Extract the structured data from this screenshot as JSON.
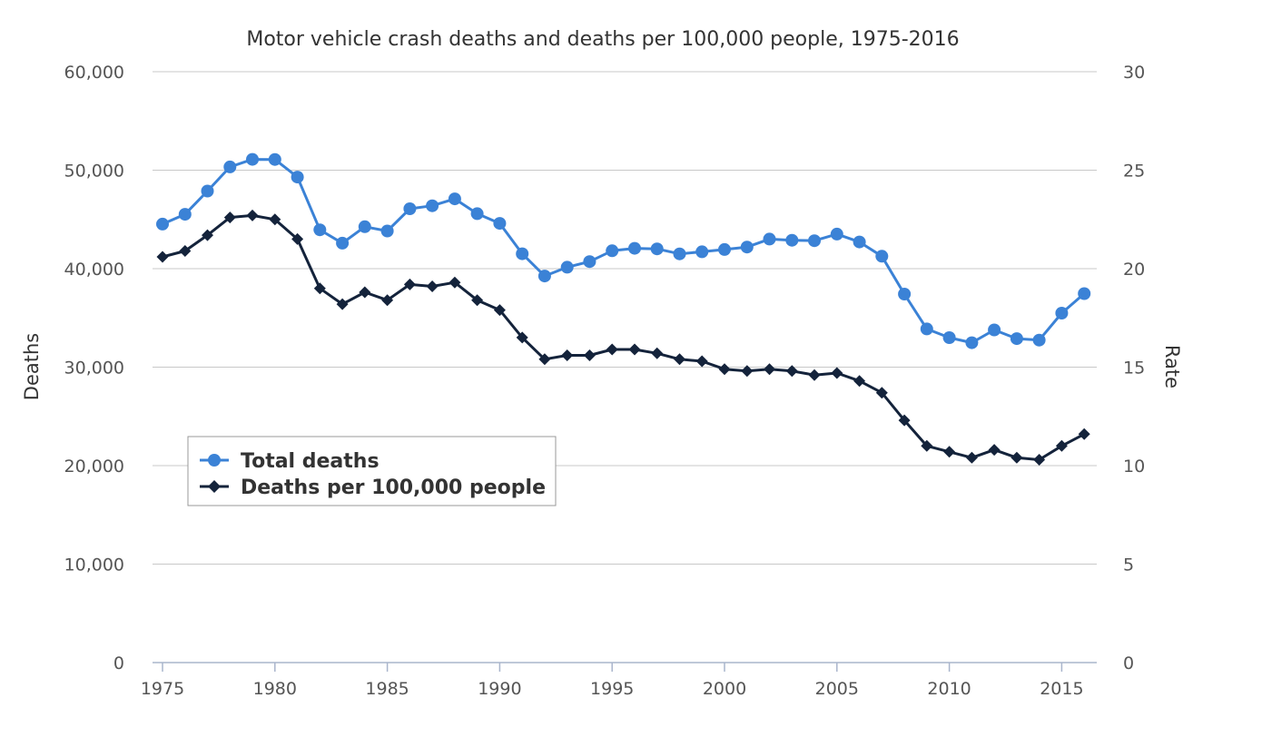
{
  "chart_data": {
    "type": "line",
    "title": "Motor vehicle crash deaths and deaths per 100,000 people, 1975-2016",
    "x": [
      1975,
      1976,
      1977,
      1978,
      1979,
      1980,
      1981,
      1982,
      1983,
      1984,
      1985,
      1986,
      1987,
      1988,
      1989,
      1990,
      1991,
      1992,
      1993,
      1994,
      1995,
      1996,
      1997,
      1998,
      1999,
      2000,
      2001,
      2002,
      2003,
      2004,
      2005,
      2006,
      2007,
      2008,
      2009,
      2010,
      2011,
      2012,
      2013,
      2014,
      2015,
      2016
    ],
    "xticks": [
      "1975",
      "1980",
      "1985",
      "1990",
      "1995",
      "2000",
      "2005",
      "2010",
      "2015"
    ],
    "xlim": [
      1975,
      2016
    ],
    "y_left": {
      "label": "Deaths",
      "lim": [
        0,
        60000
      ],
      "ticks": [
        "0",
        "10,000",
        "20,000",
        "30,000",
        "40,000",
        "50,000",
        "60,000"
      ]
    },
    "y_right": {
      "label": "Rate",
      "lim": [
        0,
        30
      ],
      "ticks": [
        "0",
        "5",
        "10",
        "15",
        "20",
        "25",
        "30"
      ]
    },
    "grid": true,
    "legend": {
      "placement": "bottom-left"
    },
    "series": [
      {
        "name": "Total deaths",
        "axis": "left",
        "marker": "circle",
        "color": "#3b82d6",
        "values": [
          44525,
          45523,
          47878,
          50331,
          51093,
          51091,
          49301,
          43945,
          42589,
          44257,
          43825,
          46087,
          46390,
          47087,
          45582,
          44599,
          41508,
          39250,
          40150,
          40716,
          41817,
          42065,
          42013,
          41501,
          41717,
          41945,
          42196,
          43005,
          42884,
          42836,
          43510,
          42708,
          41259,
          37423,
          33883,
          32999,
          32479,
          33782,
          32893,
          32744,
          35484,
          37461
        ]
      },
      {
        "name": "Deaths per 100,000 people",
        "axis": "right",
        "marker": "diamond",
        "color": "#14233b",
        "values": [
          20.6,
          20.9,
          21.7,
          22.6,
          22.7,
          22.5,
          21.5,
          19.0,
          18.2,
          18.8,
          18.4,
          19.2,
          19.1,
          19.3,
          18.4,
          17.9,
          16.5,
          15.4,
          15.6,
          15.6,
          15.9,
          15.9,
          15.7,
          15.4,
          15.3,
          14.9,
          14.8,
          14.9,
          14.8,
          14.6,
          14.7,
          14.3,
          13.7,
          12.3,
          11.0,
          10.7,
          10.4,
          10.8,
          10.4,
          10.3,
          11.0,
          11.6
        ]
      }
    ]
  }
}
